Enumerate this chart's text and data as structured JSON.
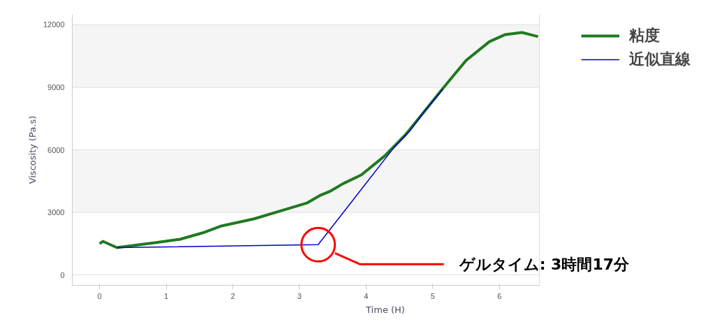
{
  "chart_data": {
    "type": "line",
    "xlabel": "Time (H)",
    "ylabel": "Viscosity (Pa.s)",
    "xlim": [
      -0.41,
      6.6
    ],
    "ylim": [
      -500,
      12500
    ],
    "xticks": [
      0,
      1,
      2,
      3,
      4,
      5,
      6
    ],
    "yticks": [
      0,
      3000,
      6000,
      9000,
      12000
    ],
    "bands": [
      {
        "axis": "y",
        "from": 3000,
        "to": 6000,
        "color": "#f5f5f5"
      },
      {
        "axis": "y",
        "from": 9000,
        "to": 12000,
        "color": "#f5f5f5"
      }
    ],
    "grid": "y",
    "legend": "top right",
    "line_style": "solid",
    "marker": "none",
    "annotations": [
      "ゲルタイム: 3時間17分"
    ],
    "series": [
      {
        "name": "粘度",
        "color": "#1f7a1f",
        "x": [
          0.0,
          0.05,
          0.16,
          0.26,
          0.5,
          0.85,
          1.21,
          1.55,
          1.83,
          2.32,
          2.78,
          3.12,
          3.3,
          3.47,
          3.65,
          3.93,
          4.28,
          4.59,
          4.87,
          5.15,
          5.5,
          5.85,
          6.09,
          6.34,
          6.58
        ],
        "values": [
          1500,
          1610,
          1450,
          1310,
          1410,
          1550,
          1710,
          2020,
          2350,
          2690,
          3130,
          3460,
          3800,
          4030,
          4370,
          4800,
          5710,
          6720,
          7830,
          8940,
          10290,
          11190,
          11530,
          11630,
          11430
        ]
      },
      {
        "name": "近似直線",
        "color": "#0000cc",
        "x": [
          0.26,
          3.28,
          4.41,
          4.66,
          4.87,
          5.15
        ],
        "values": [
          1310,
          1450,
          6080,
          6920,
          7830,
          8910
        ]
      }
    ]
  }
}
